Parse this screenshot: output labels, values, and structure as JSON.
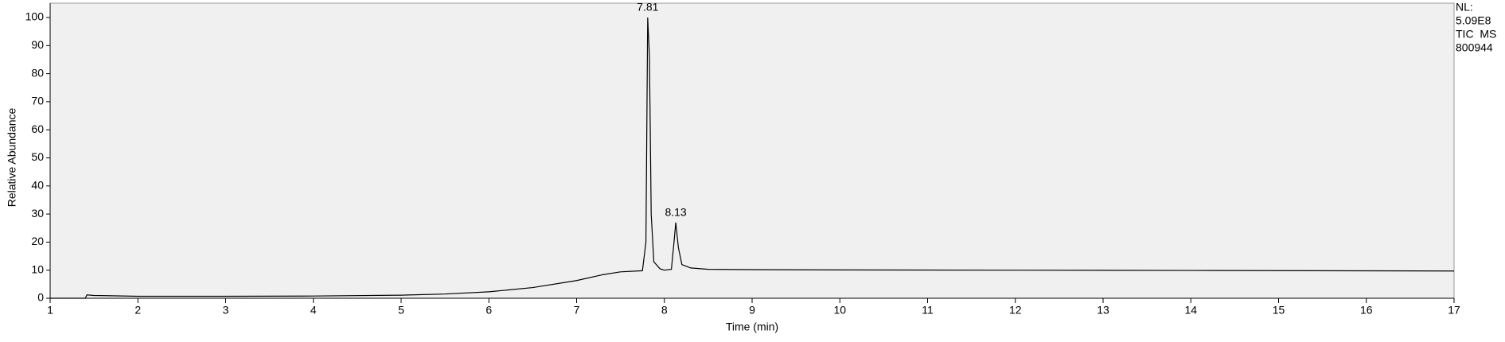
{
  "chart_data": {
    "type": "line",
    "y_label": "Relative Abundance",
    "x_label": "Time (min)",
    "x": [
      1.0,
      1.4,
      1.42,
      1.5,
      2,
      3,
      4,
      5,
      5.5,
      6,
      6.5,
      7,
      7.3,
      7.5,
      7.75,
      7.79,
      7.81,
      7.83,
      7.85,
      7.88,
      7.95,
      8.0,
      8.08,
      8.11,
      8.13,
      8.16,
      8.2,
      8.3,
      8.5,
      9,
      10,
      12,
      14,
      17
    ],
    "series": [
      {
        "color": "#000000",
        "values": [
          0,
          0,
          1.2,
          1.0,
          0.7,
          0.7,
          0.8,
          1.1,
          1.5,
          2.3,
          3.8,
          6.3,
          8.4,
          9.4,
          9.8,
          20,
          100,
          86,
          30,
          13,
          10.5,
          10,
          10.3,
          20,
          27,
          18,
          12,
          10.8,
          10.3,
          10.2,
          10.1,
          10,
          9.9,
          9.7
        ]
      }
    ],
    "peak_labels": [
      {
        "x": 7.81,
        "y": 100
      },
      {
        "x": 8.13,
        "y": 27
      }
    ],
    "info": [
      "NL:",
      "5.09E8",
      "TIC  MS",
      "800944"
    ],
    "xlim": [
      1,
      17
    ],
    "xticks": [
      1,
      2,
      3,
      4,
      5,
      6,
      7,
      8,
      9,
      10,
      11,
      12,
      13,
      14,
      15,
      16,
      17
    ],
    "ylim": [
      0,
      100
    ],
    "yticks": [
      0,
      10,
      20,
      30,
      40,
      50,
      60,
      70,
      80,
      90,
      100
    ],
    "grid": false
  }
}
